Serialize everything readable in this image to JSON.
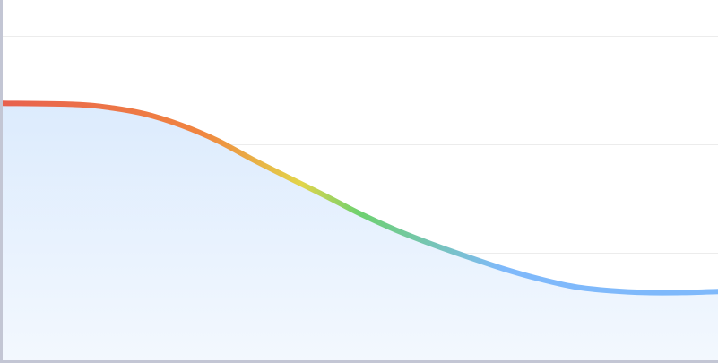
{
  "chart_data": {
    "type": "area",
    "title": "",
    "xlabel": "",
    "ylabel": "",
    "grid": true,
    "legend": "none",
    "xlim": [
      0,
      10
    ],
    "ylim": [
      0,
      100
    ],
    "y_gridlines": [
      30,
      60,
      90
    ],
    "series": [
      {
        "x": [
          0,
          1,
          1.5,
          2,
          2.5,
          3,
          3.5,
          4,
          4.5,
          5,
          5.5,
          6,
          6.5,
          7,
          7.5,
          8,
          8.5,
          9,
          9.5,
          10
        ],
        "values": [
          71.4,
          71.1,
          70.2,
          68.4,
          65.3,
          61.1,
          55.8,
          50.8,
          45.9,
          40.8,
          36.3,
          32.4,
          28.9,
          25.6,
          22.8,
          20.6,
          19.5,
          19.0,
          19.0,
          19.3
        ]
      }
    ],
    "colors": {
      "line_gradient": [
        "#e8614f",
        "#f08540",
        "#e2d54b",
        "#6dd16f",
        "#7fb9fb"
      ],
      "area_fill_top": "#dcebfd",
      "area_fill_bottom": "#f3f8fe",
      "gridline": "#ececec",
      "axis": "#c3c6d4"
    }
  }
}
